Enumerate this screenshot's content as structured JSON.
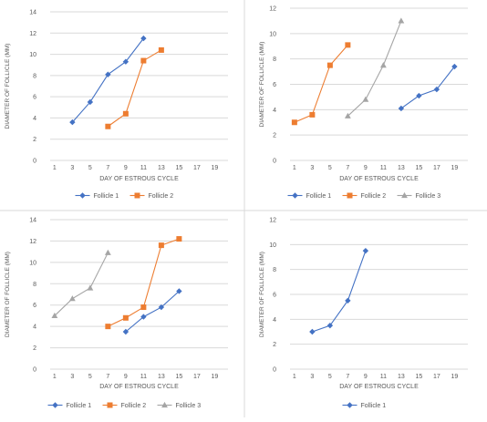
{
  "colors": {
    "follicle_1": "#4472C4",
    "follicle_2": "#ED7D31",
    "follicle_3": "#A5A5A5",
    "gridline": "#D9D9D9",
    "axis_text": "#595959",
    "panel_border": "#D9D9D9"
  },
  "chart_data": [
    {
      "type": "line",
      "panel": "top-left",
      "title": "",
      "xlabel": "DAY OF ESTROUS CYCLE",
      "ylabel": "DIAMETER OF FOLLICLE (MM)",
      "x_ticks": [
        "1",
        "3",
        "5",
        "7",
        "9",
        "11",
        "13",
        "15",
        "17",
        "19"
      ],
      "xlim": [
        1,
        19
      ],
      "ylim": [
        0,
        14
      ],
      "y_step": 2,
      "y_ticks": [
        "0",
        "2",
        "4",
        "6",
        "8",
        "10",
        "12",
        "14"
      ],
      "grid": true,
      "legend_position": "bottom",
      "series": [
        {
          "name": "Follicle 1",
          "color_key": "follicle_1",
          "marker": "diamond",
          "points": [
            [
              3,
              3.6
            ],
            [
              5,
              5.5
            ],
            [
              7,
              8.1
            ],
            [
              9,
              9.3
            ],
            [
              11,
              11.5
            ]
          ]
        },
        {
          "name": "Follicle 2",
          "color_key": "follicle_2",
          "marker": "square",
          "points": [
            [
              7,
              3.2
            ],
            [
              9,
              4.4
            ],
            [
              11,
              9.4
            ],
            [
              13,
              10.4
            ]
          ]
        }
      ]
    },
    {
      "type": "line",
      "panel": "top-right",
      "title": "",
      "xlabel": "DAY OF ESTROUS CYCLE",
      "ylabel": "DIAMETER OF FOLLICLE (MM)",
      "x_ticks": [
        "1",
        "3",
        "5",
        "7",
        "9",
        "11",
        "13",
        "15",
        "17",
        "19"
      ],
      "xlim": [
        1,
        19
      ],
      "ylim": [
        0,
        12
      ],
      "y_step": 2,
      "y_ticks": [
        "0",
        "2",
        "4",
        "6",
        "8",
        "10",
        "12"
      ],
      "grid": true,
      "legend_position": "bottom",
      "series": [
        {
          "name": "Follicle 1",
          "color_key": "follicle_1",
          "marker": "diamond",
          "points": [
            [
              13,
              4.1
            ],
            [
              15,
              5.1
            ],
            [
              17,
              5.6
            ],
            [
              19,
              7.4
            ]
          ]
        },
        {
          "name": "Follicle 2",
          "color_key": "follicle_2",
          "marker": "square",
          "points": [
            [
              1,
              3.0
            ],
            [
              3,
              3.6
            ],
            [
              5,
              7.5
            ],
            [
              7,
              9.1
            ]
          ]
        },
        {
          "name": "Follicle 3",
          "color_key": "follicle_3",
          "marker": "triangle",
          "points": [
            [
              7,
              3.5
            ],
            [
              9,
              4.8
            ],
            [
              11,
              7.5
            ],
            [
              13,
              11.0
            ]
          ]
        }
      ]
    },
    {
      "type": "line",
      "panel": "bottom-left",
      "title": "",
      "xlabel": "DAY OF ESTROUS CYCLE",
      "ylabel": "DIAMETER OF FOLLICLE (MM)",
      "x_ticks": [
        "1",
        "3",
        "5",
        "7",
        "9",
        "11",
        "13",
        "15",
        "17",
        "19"
      ],
      "xlim": [
        1,
        19
      ],
      "ylim": [
        0,
        14
      ],
      "y_step": 2,
      "y_ticks": [
        "0",
        "2",
        "4",
        "6",
        "8",
        "10",
        "12",
        "14"
      ],
      "grid": true,
      "legend_position": "bottom",
      "series": [
        {
          "name": "Follicle 1",
          "color_key": "follicle_1",
          "marker": "diamond",
          "points": [
            [
              9,
              3.5
            ],
            [
              11,
              4.9
            ],
            [
              13,
              5.8
            ],
            [
              15,
              7.3
            ]
          ]
        },
        {
          "name": "Follicle 2",
          "color_key": "follicle_2",
          "marker": "square",
          "points": [
            [
              7,
              4.0
            ],
            [
              9,
              4.8
            ],
            [
              11,
              5.8
            ],
            [
              13,
              11.6
            ],
            [
              15,
              12.2
            ]
          ]
        },
        {
          "name": "Follicle 3",
          "color_key": "follicle_3",
          "marker": "triangle",
          "points": [
            [
              1,
              5.0
            ],
            [
              3,
              6.6
            ],
            [
              5,
              7.6
            ],
            [
              7,
              10.9
            ]
          ]
        }
      ]
    },
    {
      "type": "line",
      "panel": "bottom-right",
      "title": "",
      "xlabel": "DAY OF ESTROUS CYCLE",
      "ylabel": "DIAMETER OF FOLLICLE (MM)",
      "x_ticks": [
        "1",
        "3",
        "5",
        "7",
        "9",
        "11",
        "13",
        "15",
        "17",
        "19"
      ],
      "xlim": [
        1,
        19
      ],
      "ylim": [
        0,
        12
      ],
      "y_step": 2,
      "y_ticks": [
        "0",
        "2",
        "4",
        "6",
        "8",
        "10",
        "12"
      ],
      "grid": true,
      "legend_position": "bottom",
      "series": [
        {
          "name": "Follicle 1",
          "color_key": "follicle_1",
          "marker": "diamond",
          "points": [
            [
              3,
              3.0
            ],
            [
              5,
              3.5
            ],
            [
              7,
              5.5
            ],
            [
              9,
              9.5
            ]
          ]
        }
      ]
    }
  ]
}
